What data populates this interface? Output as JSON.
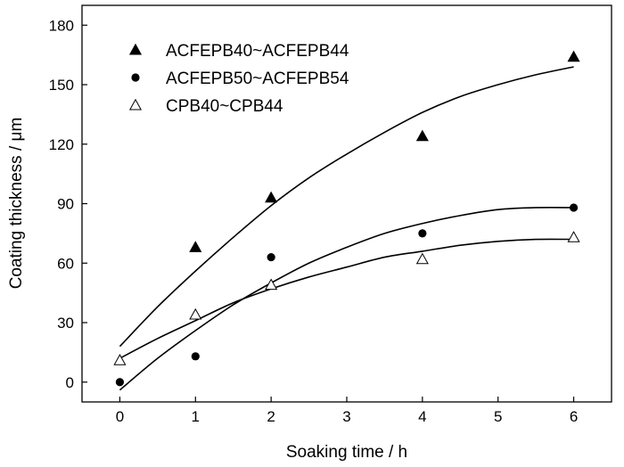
{
  "chart_data": {
    "type": "scatter",
    "xlabel": "Soaking time / h",
    "ylabel": "Coating thickness / μm",
    "xlim": [
      -0.5,
      6.5
    ],
    "ylim": [
      -10,
      190
    ],
    "x_ticks": [
      0,
      1,
      2,
      3,
      4,
      5,
      6
    ],
    "y_ticks": [
      0,
      30,
      60,
      90,
      120,
      150,
      180
    ],
    "grid": false,
    "legend_position": "top-left",
    "series": [
      {
        "name": "ACFEPB40~ACFEPB44",
        "marker": "filled-triangle",
        "x": [
          1,
          2,
          4,
          6
        ],
        "y": [
          68,
          93,
          124,
          164
        ],
        "fit_x": [
          0,
          0.5,
          1,
          1.5,
          2,
          2.5,
          3,
          3.5,
          4,
          4.5,
          5,
          5.5,
          6
        ],
        "fit_y": [
          18,
          38,
          56,
          73,
          89,
          103,
          115,
          126,
          136,
          144,
          150,
          155,
          159
        ]
      },
      {
        "name": "ACFEPB50~ACFEPB54",
        "marker": "filled-circle",
        "x": [
          0,
          1,
          2,
          4,
          6
        ],
        "y": [
          0,
          13,
          63,
          75,
          88
        ],
        "fit_x": [
          0,
          0.5,
          1,
          1.5,
          2,
          2.5,
          3,
          3.5,
          4,
          4.5,
          5,
          5.5,
          6
        ],
        "fit_y": [
          -4,
          12,
          26,
          39,
          50,
          60,
          68,
          75,
          80,
          84,
          87,
          88,
          88
        ]
      },
      {
        "name": "CPB40~CPB44",
        "marker": "open-triangle",
        "x": [
          0,
          1,
          2,
          4,
          6
        ],
        "y": [
          11,
          34,
          49,
          62,
          73
        ],
        "fit_x": [
          0,
          0.5,
          1,
          1.5,
          2,
          2.5,
          3,
          3.5,
          4,
          4.5,
          5,
          5.5,
          6
        ],
        "fit_y": [
          12,
          22,
          31,
          40,
          47,
          53,
          58,
          63,
          66,
          69,
          71,
          72,
          72
        ]
      }
    ]
  }
}
